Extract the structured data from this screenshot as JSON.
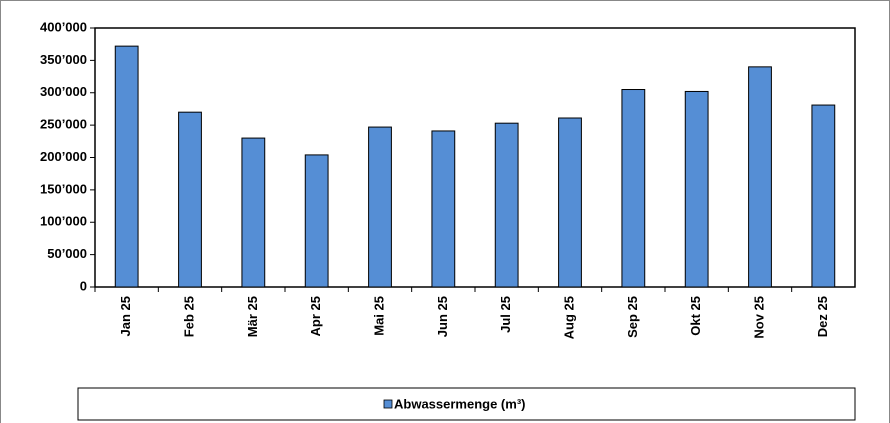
{
  "chart_data": {
    "type": "bar",
    "categories": [
      "Jan 25",
      "Feb 25",
      "Mär 25",
      "Apr 25",
      "Mai 25",
      "Jun 25",
      "Jul 25",
      "Aug 25",
      "Sep 25",
      "Okt 25",
      "Nov 25",
      "Dez 25"
    ],
    "series": [
      {
        "name": "Abwassermenge (m³)",
        "color": "#558ed5",
        "values": [
          372000,
          270000,
          230000,
          204000,
          247000,
          241000,
          253000,
          261000,
          305000,
          302000,
          340000,
          281000
        ]
      }
    ],
    "ylim": [
      0,
      400000
    ],
    "yticks": [
      {
        "value": 0,
        "label": "0"
      },
      {
        "value": 50000,
        "label": "50’000"
      },
      {
        "value": 100000,
        "label": "100’000"
      },
      {
        "value": 150000,
        "label": "150’000"
      },
      {
        "value": 200000,
        "label": "200’000"
      },
      {
        "value": 250000,
        "label": "250’000"
      },
      {
        "value": 300000,
        "label": "300’000"
      },
      {
        "value": 350000,
        "label": "350’000"
      },
      {
        "value": 400000,
        "label": "400’000"
      }
    ],
    "legend": "bottom"
  }
}
